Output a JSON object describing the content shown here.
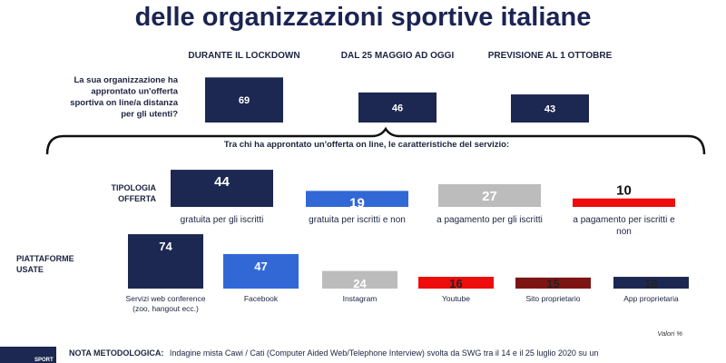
{
  "title": "delle organizzazioni sportive italiane",
  "note_label": "NOTA METODOLOGICA:",
  "note_text": "Indagine mista Cawi / Cati (Computer Aided Web/Telephone Interview) svolta da SWG tra il 14 e il 25 luglio 2020 su un",
  "values_note": "Valori %",
  "logo_text": "SPORT",
  "colors": {
    "navy": "#1c2851",
    "blue": "#3268d6",
    "gray": "#bcbcbc",
    "red": "#ee0c0c",
    "dark_red": "#7d1414",
    "title": "#1b2452"
  },
  "chart_data": [
    {
      "type": "bar",
      "question": "La sua organizzazione ha approntato un'offerta sportiva on line/a distanza per gli utenti?",
      "question_lines": [
        "La sua organizzazione ha",
        "approntato un'offerta",
        "sportiva on line/a distanza",
        "per gli utenti?"
      ],
      "categories": [
        "DURANTE IL LOCKDOWN",
        "DAL 25 MAGGIO AD OGGI",
        "PREVISIONE AL 1 OTTOBRE"
      ],
      "values": [
        69,
        46,
        43
      ]
    },
    {
      "type": "bar",
      "section_header": "Tra chi ha approntato un'offerta on line, le caratteristiche del servizio:",
      "row_label": "TIPOLOGIA OFFERTA",
      "row_label_lines": [
        "TIPOLOGIA",
        "OFFERTA"
      ],
      "categories": [
        "gratuita per gli iscritti",
        "gratuita per iscritti e non",
        "a pagamento per gli iscritti",
        "a pagamento per iscritti e non"
      ],
      "category_lines": [
        [
          "gratuita per gli iscritti"
        ],
        [
          "gratuita per iscritti e non"
        ],
        [
          "a pagamento per gli iscritti"
        ],
        [
          "a pagamento per iscritti e",
          "non"
        ]
      ],
      "values": [
        44,
        19,
        27,
        10
      ]
    },
    {
      "type": "bar",
      "row_label": "PIATTAFORME USATE",
      "row_label_lines": [
        "PIATTAFORME",
        "USATE"
      ],
      "categories": [
        "Servizi web conference (zoo, hangout ecc.)",
        "Facebook",
        "Instagram",
        "Youtube",
        "Sito proprietario",
        "App proprietaria"
      ],
      "category_lines": [
        [
          "Servizi web conference",
          "(zoo, hangout ecc.)"
        ],
        [
          "Facebook"
        ],
        [
          "Instagram"
        ],
        [
          "Youtube"
        ],
        [
          "Sito proprietario"
        ],
        [
          "App proprietaria"
        ]
      ],
      "values": [
        74,
        47,
        24,
        16,
        15,
        16
      ]
    }
  ]
}
